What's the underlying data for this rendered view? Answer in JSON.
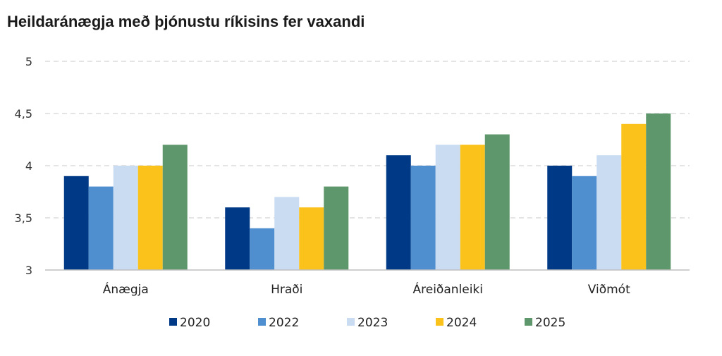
{
  "chart_data": {
    "type": "bar",
    "title": "Heildaránægja með þjónustu ríkisins fer vaxandi",
    "categories": [
      "Ánægja",
      "Hraði",
      "Áreiðanleiki",
      "Viðmót"
    ],
    "series": [
      {
        "name": "2020",
        "color": "#003a86",
        "values": [
          3.9,
          3.6,
          4.1,
          4.0
        ]
      },
      {
        "name": "2022",
        "color": "#4f8fd0",
        "values": [
          3.8,
          3.4,
          4.0,
          3.9
        ]
      },
      {
        "name": "2023",
        "color": "#c9dcf2",
        "values": [
          4.0,
          3.7,
          4.2,
          4.1
        ]
      },
      {
        "name": "2024",
        "color": "#fbc21b",
        "values": [
          4.0,
          3.6,
          4.2,
          4.4
        ]
      },
      {
        "name": "2025",
        "color": "#5e976b",
        "values": [
          4.2,
          3.8,
          4.3,
          4.5
        ]
      }
    ],
    "ylim": [
      3,
      5
    ],
    "yticks": [
      "3",
      "3,5",
      "4",
      "4,5",
      "5"
    ],
    "ytick_values": [
      3,
      3.5,
      4,
      4.5,
      5
    ],
    "grid": true,
    "legend": "bottom"
  }
}
